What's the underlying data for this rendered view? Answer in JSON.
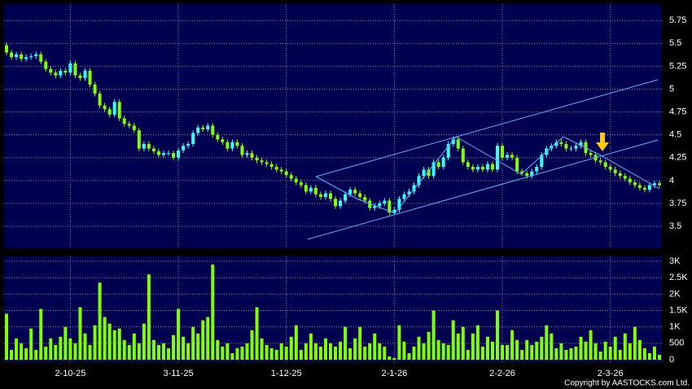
{
  "chart_data": {
    "type": "candlestick",
    "up_color": "#33ffff",
    "down_color": "#80ff00",
    "volume_color": "#80ff00",
    "copyright": "Copyright by AASTOCKS.com Ltd.",
    "xlim": [
      -0.5,
      133.5
    ],
    "xticks": [
      {
        "value": 13,
        "label": "2-10-25"
      },
      {
        "value": 35,
        "label": "3-11-25"
      },
      {
        "value": 57,
        "label": "1-12-25"
      },
      {
        "value": 79,
        "label": "2-1-26"
      },
      {
        "value": 101,
        "label": "2-2-26"
      },
      {
        "value": 123,
        "label": "2-3-26"
      }
    ],
    "ylim": [
      3.26,
      5.93
    ],
    "yticks": [
      3.5,
      3.75,
      4,
      4.25,
      4.5,
      4.75,
      5,
      5.25,
      5.5,
      5.75
    ],
    "volume_ylim": [
      0,
      3150
    ],
    "volume_ticks": [
      0,
      500,
      {
        "value": 1000,
        "label": "1K"
      },
      {
        "value": 1500,
        "label": "1.5K"
      },
      {
        "value": 2000,
        "label": "2K"
      },
      {
        "value": 2500,
        "label": "2.5K"
      },
      {
        "value": 3000,
        "label": "3K"
      }
    ],
    "grid": true,
    "open": [
      5.48,
      5.4,
      5.35,
      5.38,
      5.33,
      5.35,
      5.36,
      5.38,
      5.3,
      5.22,
      5.18,
      5.15,
      5.2,
      5.18,
      5.28,
      5.15,
      5.12,
      5.2,
      5.05,
      4.95,
      4.82,
      4.78,
      4.72,
      4.86,
      4.68,
      4.62,
      4.6,
      4.55,
      4.35,
      4.4,
      4.35,
      4.32,
      4.28,
      4.3,
      4.3,
      4.25,
      4.33,
      4.38,
      4.4,
      4.52,
      4.58,
      4.56,
      4.6,
      4.5,
      4.45,
      4.42,
      4.35,
      4.42,
      4.38,
      4.28,
      4.3,
      4.25,
      4.22,
      4.2,
      4.18,
      4.15,
      4.12,
      4.1,
      4.06,
      4.02,
      3.98,
      3.95,
      3.88,
      3.92,
      3.85,
      3.82,
      3.86,
      3.8,
      3.72,
      3.78,
      3.85,
      3.9,
      3.86,
      3.82,
      3.78,
      3.7,
      3.72,
      3.75,
      3.78,
      3.65,
      3.68,
      3.8,
      3.85,
      3.88,
      3.95,
      4.05,
      4.12,
      4.05,
      4.2,
      4.15,
      4.25,
      4.4,
      4.45,
      4.35,
      4.2,
      4.15,
      4.12,
      4.15,
      4.12,
      4.18,
      4.12,
      4.38,
      4.25,
      4.28,
      4.25,
      4.1,
      4.08,
      4.05,
      4.1,
      4.15,
      4.28,
      4.35,
      4.38,
      4.42,
      4.4,
      4.35,
      4.35,
      4.38,
      4.42,
      4.3,
      4.28,
      4.22,
      4.2,
      4.15,
      4.12,
      4.08,
      4.05,
      4.02,
      3.98,
      3.95,
      3.92,
      3.9,
      3.95,
      3.97
    ],
    "high": [
      5.51,
      5.43,
      5.41,
      5.41,
      5.38,
      5.39,
      5.41,
      5.41,
      5.33,
      5.25,
      5.21,
      5.23,
      5.23,
      5.31,
      5.31,
      5.18,
      5.23,
      5.23,
      5.08,
      4.98,
      4.85,
      4.81,
      4.89,
      4.89,
      4.71,
      4.65,
      4.63,
      4.58,
      4.43,
      4.43,
      4.38,
      4.35,
      4.33,
      4.33,
      4.33,
      4.36,
      4.41,
      4.43,
      4.55,
      4.61,
      4.61,
      4.63,
      4.63,
      4.53,
      4.48,
      4.45,
      4.45,
      4.45,
      4.41,
      4.33,
      4.33,
      4.28,
      4.25,
      4.23,
      4.21,
      4.18,
      4.15,
      4.13,
      4.09,
      4.05,
      4.01,
      3.98,
      3.95,
      3.95,
      3.88,
      3.89,
      3.89,
      3.83,
      3.81,
      3.88,
      3.93,
      3.93,
      3.89,
      3.85,
      3.81,
      3.75,
      3.78,
      3.81,
      3.81,
      3.71,
      3.83,
      3.88,
      3.91,
      3.98,
      4.08,
      4.15,
      4.15,
      4.23,
      4.23,
      4.28,
      4.43,
      4.48,
      4.48,
      4.38,
      4.23,
      4.18,
      4.18,
      4.18,
      4.21,
      4.21,
      4.41,
      4.41,
      4.31,
      4.31,
      4.28,
      4.13,
      4.11,
      4.13,
      4.18,
      4.31,
      4.38,
      4.41,
      4.45,
      4.45,
      4.43,
      4.38,
      4.41,
      4.45,
      4.45,
      4.33,
      4.31,
      4.25,
      4.23,
      4.18,
      4.15,
      4.11,
      4.08,
      4.05,
      4.01,
      3.98,
      3.95,
      3.98,
      4.0,
      4.0
    ],
    "low": [
      5.37,
      5.32,
      5.32,
      5.3,
      5.3,
      5.32,
      5.33,
      5.27,
      5.19,
      5.15,
      5.12,
      5.12,
      5.15,
      5.15,
      5.12,
      5.09,
      5.09,
      5.02,
      4.92,
      4.79,
      4.75,
      4.69,
      4.69,
      4.65,
      4.59,
      4.57,
      4.52,
      4.32,
      4.32,
      4.32,
      4.29,
      4.25,
      4.25,
      4.27,
      4.22,
      4.22,
      4.3,
      4.35,
      4.37,
      4.49,
      4.53,
      4.53,
      4.47,
      4.42,
      4.39,
      4.32,
      4.32,
      4.35,
      4.25,
      4.25,
      4.22,
      4.19,
      4.17,
      4.15,
      4.12,
      4.09,
      4.07,
      4.03,
      3.99,
      3.95,
      3.92,
      3.85,
      3.85,
      3.82,
      3.79,
      3.79,
      3.77,
      3.69,
      3.69,
      3.75,
      3.82,
      3.83,
      3.79,
      3.75,
      3.67,
      3.67,
      3.69,
      3.72,
      3.62,
      3.62,
      3.65,
      3.77,
      3.82,
      3.85,
      3.92,
      4.02,
      4.02,
      4.02,
      4.12,
      4.12,
      4.22,
      4.37,
      4.32,
      4.17,
      4.12,
      4.09,
      4.09,
      4.09,
      4.09,
      4.09,
      4.09,
      4.22,
      4.22,
      4.22,
      4.07,
      4.05,
      4.02,
      4.02,
      4.07,
      4.12,
      4.25,
      4.32,
      4.35,
      4.37,
      4.32,
      4.32,
      4.32,
      4.35,
      4.27,
      4.25,
      4.19,
      4.17,
      4.12,
      4.09,
      4.05,
      4.02,
      3.99,
      3.95,
      3.92,
      3.89,
      3.87,
      3.87,
      3.92,
      3.92
    ],
    "close": [
      5.4,
      5.35,
      5.38,
      5.33,
      5.35,
      5.36,
      5.38,
      5.3,
      5.22,
      5.18,
      5.15,
      5.2,
      5.18,
      5.28,
      5.15,
      5.12,
      5.2,
      5.05,
      4.95,
      4.82,
      4.78,
      4.72,
      4.86,
      4.68,
      4.62,
      4.6,
      4.55,
      4.35,
      4.4,
      4.35,
      4.32,
      4.28,
      4.3,
      4.3,
      4.25,
      4.33,
      4.38,
      4.4,
      4.52,
      4.58,
      4.56,
      4.6,
      4.5,
      4.45,
      4.42,
      4.35,
      4.42,
      4.38,
      4.28,
      4.3,
      4.25,
      4.22,
      4.2,
      4.18,
      4.15,
      4.12,
      4.1,
      4.06,
      4.02,
      3.98,
      3.95,
      3.88,
      3.92,
      3.85,
      3.82,
      3.86,
      3.8,
      3.72,
      3.78,
      3.85,
      3.9,
      3.86,
      3.82,
      3.78,
      3.7,
      3.72,
      3.75,
      3.78,
      3.65,
      3.68,
      3.8,
      3.85,
      3.88,
      3.95,
      4.05,
      4.12,
      4.05,
      4.2,
      4.15,
      4.25,
      4.4,
      4.45,
      4.35,
      4.2,
      4.15,
      4.12,
      4.15,
      4.12,
      4.18,
      4.12,
      4.38,
      4.25,
      4.28,
      4.25,
      4.1,
      4.08,
      4.05,
      4.1,
      4.15,
      4.28,
      4.35,
      4.38,
      4.42,
      4.4,
      4.35,
      4.35,
      4.38,
      4.42,
      4.3,
      4.28,
      4.22,
      4.2,
      4.15,
      4.12,
      4.08,
      4.05,
      4.02,
      3.98,
      3.95,
      3.92,
      3.9,
      3.95,
      3.97,
      3.95
    ],
    "volume": [
      1400,
      300,
      650,
      500,
      350,
      950,
      300,
      1550,
      400,
      650,
      450,
      700,
      1000,
      650,
      500,
      1600,
      800,
      450,
      1050,
      2350,
      1300,
      1100,
      900,
      950,
      600,
      450,
      800,
      500,
      1100,
      2600,
      600,
      450,
      500,
      350,
      750,
      1550,
      700,
      500,
      1000,
      800,
      1200,
      1300,
      2900,
      600,
      400,
      500,
      200,
      350,
      400,
      500,
      900,
      1600,
      650,
      450,
      350,
      300,
      500,
      400,
      700,
      1050,
      300,
      500,
      800,
      500,
      400,
      650,
      500,
      400,
      550,
      1000,
      350,
      650,
      1000,
      400,
      500,
      800,
      500,
      400,
      100,
      50,
      1050,
      550,
      200,
      400,
      700,
      500,
      850,
      1500,
      600,
      500,
      450,
      1200,
      800,
      1000,
      300,
      800,
      1050,
      400,
      700,
      550,
      1500,
      450,
      450,
      900,
      600,
      300,
      600,
      450,
      550,
      700,
      1050,
      800,
      350,
      500,
      300,
      350,
      400,
      700,
      550,
      900,
      500,
      250,
      550,
      400,
      700,
      300,
      800,
      500,
      1000,
      600,
      350,
      200,
      400,
      150
    ]
  }
}
